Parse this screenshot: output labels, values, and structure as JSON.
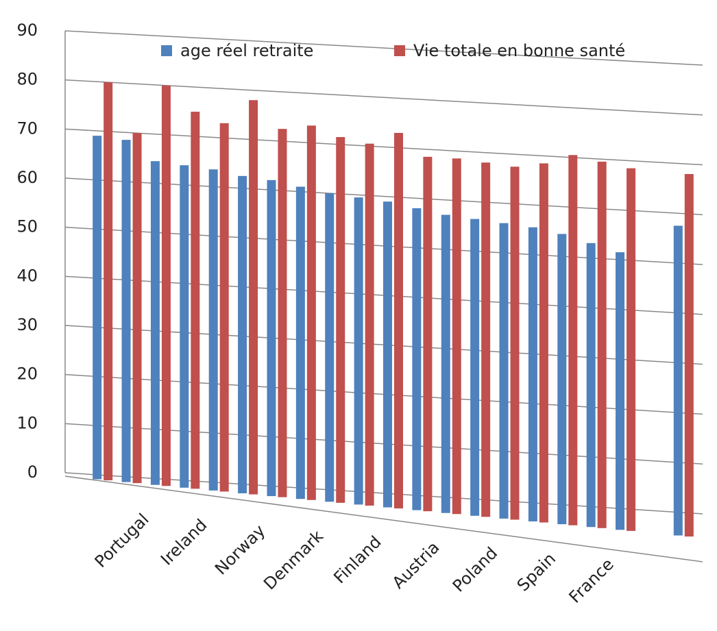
{
  "chart_data": {
    "type": "bar",
    "categories": [
      null,
      "Portugal",
      null,
      "Ireland",
      null,
      "Norway",
      null,
      "Denmark",
      null,
      "Finland",
      null,
      "Austria",
      null,
      "Poland",
      null,
      "Spain",
      null,
      "France",
      null,
      null,
      null
    ],
    "series": [
      {
        "name": "age réel retraite",
        "color": "#4f81bd",
        "values": [
          69,
          68.5,
          64.5,
          64,
          63.5,
          62.5,
          62,
          61,
          60,
          59.5,
          59,
          58,
          57,
          56.5,
          56,
          55.5,
          54.5,
          53,
          51.5,
          null,
          57.5
        ]
      },
      {
        "name": "Vie totale en bonne santé",
        "color": "#c0504d",
        "values": [
          80,
          70,
          80,
          75,
          73,
          78,
          72.5,
          73.5,
          71.5,
          70.5,
          73,
          68.5,
          68.5,
          68,
          67.5,
          68.5,
          70.5,
          69.5,
          68.5,
          null,
          68
        ]
      }
    ],
    "ylim": [
      0,
      90
    ],
    "yticks": [
      0,
      10,
      20,
      30,
      40,
      50,
      60,
      70,
      80,
      90
    ],
    "grid": true,
    "legend": "top"
  }
}
